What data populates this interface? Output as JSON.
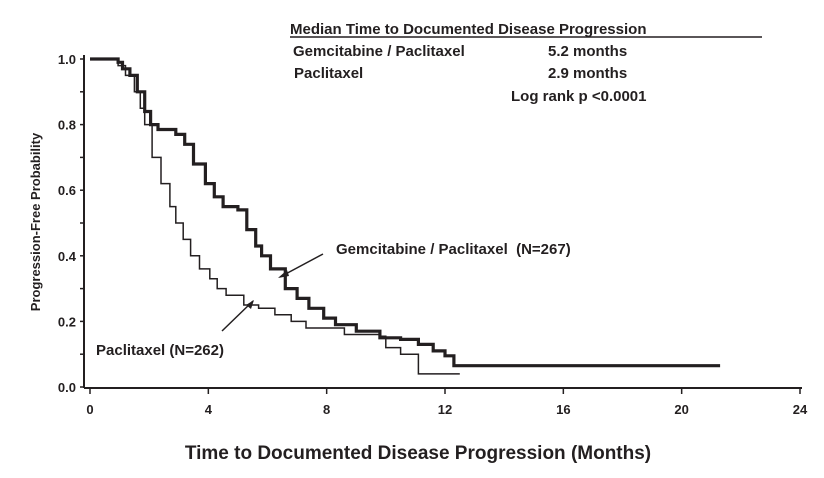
{
  "chart_data": {
    "type": "line",
    "subtype": "kaplan-meier step",
    "xlabel": "Time to Documented Disease Progression (Months)",
    "ylabel": "Progression-Free Probability",
    "xlim": [
      0,
      24
    ],
    "ylim": [
      0,
      1.0
    ],
    "x_ticks": [
      "0",
      "4",
      "8",
      "12",
      "16",
      "20",
      "24"
    ],
    "y_ticks": [
      "0.0",
      "0.2",
      "0.4",
      "0.6",
      "0.8",
      "1.0"
    ],
    "grid": false,
    "legend_box": {
      "title": "Median Time to Documented Disease Progression",
      "rows": [
        {
          "name": "Gemcitabine / Paclitaxel",
          "value": "5.2 months"
        },
        {
          "name": "Paclitaxel",
          "value": "2.9 months"
        }
      ],
      "stat": "Log rank p <0.0001"
    },
    "series": [
      {
        "name": "Gemcitabine / Paclitaxel",
        "label": "Gemcitabine / Paclitaxel  (N=267)",
        "style": "thick",
        "color": "#231f20",
        "x": [
          0,
          0.95,
          1.1,
          1.35,
          1.6,
          1.85,
          2.05,
          2.3,
          2.9,
          3.2,
          3.5,
          3.9,
          4.2,
          4.5,
          5.0,
          5.3,
          5.6,
          5.8,
          6.1,
          6.6,
          7.0,
          7.4,
          7.9,
          8.3,
          9.0,
          9.8,
          10.5,
          11.1,
          11.6,
          12.0,
          12.3,
          21.3
        ],
        "y": [
          1.0,
          0.99,
          0.97,
          0.95,
          0.9,
          0.84,
          0.8,
          0.785,
          0.77,
          0.74,
          0.68,
          0.62,
          0.58,
          0.55,
          0.54,
          0.48,
          0.43,
          0.4,
          0.36,
          0.3,
          0.27,
          0.24,
          0.21,
          0.19,
          0.17,
          0.15,
          0.145,
          0.13,
          0.11,
          0.095,
          0.065,
          0.065
        ]
      },
      {
        "name": "Paclitaxel",
        "label": "Paclitaxel (N=262)",
        "style": "thin",
        "color": "#231f20",
        "x": [
          0,
          0.95,
          1.2,
          1.5,
          1.7,
          1.85,
          2.1,
          2.4,
          2.7,
          2.9,
          3.15,
          3.4,
          3.7,
          4.05,
          4.3,
          4.6,
          5.2,
          5.7,
          6.25,
          6.8,
          7.3,
          8.6,
          9.8,
          10.0,
          10.5,
          11.1,
          12.5
        ],
        "y": [
          1.0,
          0.98,
          0.95,
          0.9,
          0.85,
          0.8,
          0.7,
          0.62,
          0.55,
          0.5,
          0.45,
          0.4,
          0.36,
          0.33,
          0.3,
          0.28,
          0.25,
          0.24,
          0.22,
          0.2,
          0.18,
          0.16,
          0.155,
          0.12,
          0.1,
          0.04,
          0.04
        ]
      }
    ]
  }
}
